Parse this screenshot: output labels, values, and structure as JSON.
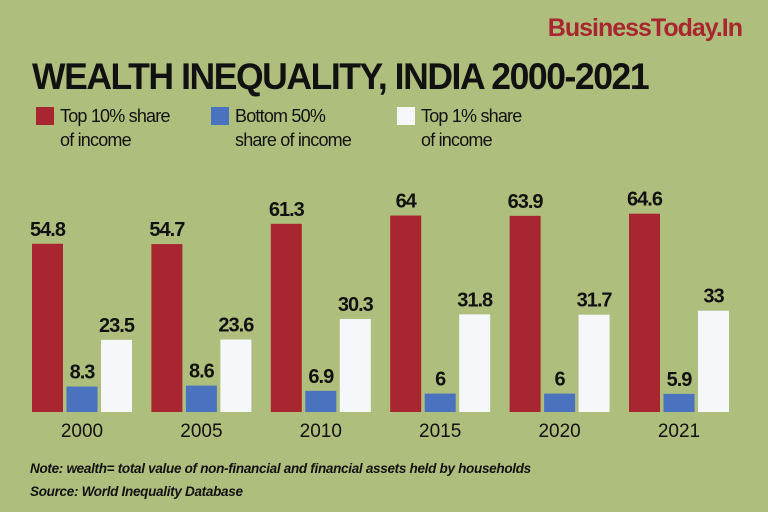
{
  "logo": "BusinessToday.In",
  "chart_data": {
    "type": "bar",
    "title": "WEALTH INEQUALITY, INDIA 2000-2021",
    "categories": [
      "2000",
      "2005",
      "2010",
      "2015",
      "2020",
      "2021"
    ],
    "series": [
      {
        "name": "Top 10% share of income",
        "color": "#a8262f",
        "values": [
          54.8,
          54.7,
          61.3,
          64,
          63.9,
          64.6
        ]
      },
      {
        "name": "Bottom 50% share of income",
        "color": "#4a72bf",
        "values": [
          8.3,
          8.6,
          6.9,
          6,
          6,
          5.9
        ]
      },
      {
        "name": "Top 1% share of income",
        "color": "#f5f7fa",
        "values": [
          23.5,
          23.6,
          30.3,
          31.8,
          31.7,
          33
        ]
      }
    ],
    "ylim": [
      0,
      70
    ],
    "grid": false,
    "legend": "top-left",
    "data_labels": true
  },
  "legend": [
    {
      "line1": "Top 10% share",
      "line2": "of income"
    },
    {
      "line1": "Bottom 50%",
      "line2": "share of income"
    },
    {
      "line1": "Top 1% share",
      "line2": "of income"
    }
  ],
  "note": "Note: wealth= total value of non-financial and financial assets held by households",
  "source": "Source: World Inequality Database"
}
